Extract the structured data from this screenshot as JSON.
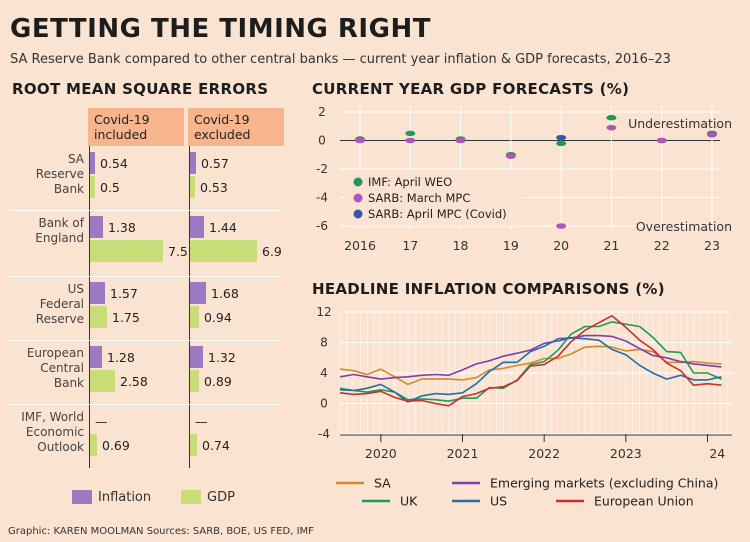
{
  "header": {
    "title": "GETTING THE TIMING RIGHT",
    "subtitle": "SA Reserve Bank compared to other central banks — current year inflation & GDP forecasts, 2016–23"
  },
  "credit": "Graphic: KAREN MOOLMAN  Sources: SARB, BOE, US FED, IMF",
  "colors": {
    "inflation": "#9b7ac2",
    "gdp": "#c8dd78",
    "background": "#fbe3d2",
    "header_band": "#f6b58c"
  },
  "chart_data": [
    {
      "type": "bar",
      "title": "ROOT MEAN SQUARE ERRORS",
      "column_headers": [
        "Covid-19 included",
        "Covid-19 excluded"
      ],
      "categories": [
        "SA Reserve Bank",
        "Bank of England",
        "US Federal Reserve",
        "European Central Bank",
        "IMF, World Economic Outlook"
      ],
      "category_lines": [
        [
          "SA",
          "Reserve",
          "Bank"
        ],
        [
          "Bank of",
          "England"
        ],
        [
          "US",
          "Federal",
          "Reserve"
        ],
        [
          "European",
          "Central",
          "Bank"
        ],
        [
          "IMF, World",
          "Economic",
          "Outlook"
        ]
      ],
      "series": [
        {
          "name": "Inflation",
          "color": "#9b7ac2",
          "included": [
            0.54,
            1.38,
            1.57,
            1.28,
            null
          ],
          "excluded": [
            0.57,
            1.44,
            1.68,
            1.32,
            null
          ],
          "included_labels": [
            "0.54",
            "1.38",
            "1.57",
            "1.28",
            "—"
          ],
          "excluded_labels": [
            "0.57",
            "1.44",
            "1.68",
            "1.32",
            "—"
          ]
        },
        {
          "name": "GDP",
          "color": "#c8dd78",
          "included": [
            0.5,
            7.5,
            1.75,
            2.58,
            0.69
          ],
          "excluded": [
            0.53,
            6.9,
            0.94,
            0.89,
            0.74
          ],
          "included_labels": [
            "0.5",
            "7.5",
            "1.75",
            "2.58",
            "0.69"
          ],
          "excluded_labels": [
            "0.53",
            "6.9",
            "0.94",
            "0.89",
            "0.74"
          ]
        }
      ],
      "legend": [
        "Inflation",
        "GDP"
      ]
    },
    {
      "type": "scatter",
      "title": "CURRENT YEAR GDP FORECASTS (%)",
      "x_ticks": [
        "2016",
        "17",
        "18",
        "19",
        "20",
        "21",
        "22",
        "23"
      ],
      "y_ticks": [
        "2",
        "0",
        "-2",
        "-4",
        "-6"
      ],
      "ylim": [
        -6.5,
        2.5
      ],
      "annotations": [
        "Underestimation",
        "Overestimation"
      ],
      "series": [
        {
          "name": "IMF: April WEO",
          "color": "#1e9a5a",
          "points": [
            [
              2016,
              0.1
            ],
            [
              2017,
              0.5
            ],
            [
              2018,
              0.1
            ],
            [
              2019,
              -1.0
            ],
            [
              2020,
              -0.2
            ],
            [
              2021,
              1.6
            ],
            [
              2022,
              0.0
            ],
            [
              2023,
              0.5
            ]
          ]
        },
        {
          "name": "SARB: March MPC",
          "color": "#b054b8",
          "points": [
            [
              2016,
              0.0
            ],
            [
              2017,
              0.0
            ],
            [
              2018,
              0.0
            ],
            [
              2019,
              -1.1
            ],
            [
              2020,
              -6.0
            ],
            [
              2021,
              0.9
            ],
            [
              2022,
              0.0
            ],
            [
              2023,
              0.4
            ]
          ]
        },
        {
          "name": "SARB: April MPC (Covid)",
          "color": "#3b55a8",
          "points": [
            [
              2020,
              0.2
            ]
          ]
        }
      ]
    },
    {
      "type": "line",
      "title": "HEADLINE INFLATION COMPARISONS (%)",
      "x_ticks": [
        "2020",
        "2021",
        "2022",
        "2023",
        "24"
      ],
      "y_ticks": [
        "12",
        "8",
        "4",
        "0",
        "-4"
      ],
      "ylim": [
        -4,
        12
      ],
      "x_range": [
        2019.5,
        2024.3
      ],
      "series": [
        {
          "name": "SA",
          "color": "#d4882e",
          "x": [
            2019.5,
            2019.67,
            2019.83,
            2020.0,
            2020.17,
            2020.33,
            2020.5,
            2020.67,
            2020.83,
            2021.0,
            2021.17,
            2021.33,
            2021.5,
            2021.67,
            2021.83,
            2022.0,
            2022.17,
            2022.33,
            2022.5,
            2022.67,
            2022.83,
            2023.0,
            2023.17,
            2023.33,
            2023.5,
            2023.67,
            2023.83,
            2024.0,
            2024.17
          ],
          "y": [
            4.5,
            4.3,
            3.8,
            4.5,
            3.5,
            2.5,
            3.2,
            3.2,
            3.2,
            3.1,
            3.4,
            4.4,
            4.6,
            5.0,
            5.3,
            5.9,
            5.9,
            6.5,
            7.4,
            7.5,
            7.4,
            6.9,
            7.1,
            6.8,
            5.4,
            5.4,
            5.5,
            5.3,
            5.2
          ]
        },
        {
          "name": "Emerging markets (excluding China)",
          "color": "#7a3fb0",
          "x": [
            2019.5,
            2019.67,
            2019.83,
            2020.0,
            2020.17,
            2020.33,
            2020.5,
            2020.67,
            2020.83,
            2021.0,
            2021.17,
            2021.33,
            2021.5,
            2021.67,
            2021.83,
            2022.0,
            2022.17,
            2022.33,
            2022.5,
            2022.67,
            2022.83,
            2023.0,
            2023.17,
            2023.33,
            2023.5,
            2023.67,
            2023.83,
            2024.0,
            2024.17
          ],
          "y": [
            3.5,
            3.8,
            3.5,
            3.2,
            3.4,
            3.5,
            3.7,
            3.8,
            3.7,
            4.4,
            5.2,
            5.6,
            6.2,
            6.6,
            7.0,
            7.9,
            8.2,
            8.6,
            8.9,
            8.9,
            8.8,
            8.2,
            7.2,
            6.3,
            6.0,
            5.5,
            5.2,
            5.0,
            4.8
          ]
        },
        {
          "name": "UK",
          "color": "#1e9a5a",
          "x": [
            2019.5,
            2019.67,
            2019.83,
            2020.0,
            2020.17,
            2020.33,
            2020.5,
            2020.67,
            2020.83,
            2021.0,
            2021.17,
            2021.33,
            2021.5,
            2021.67,
            2021.83,
            2022.0,
            2022.17,
            2022.33,
            2022.5,
            2022.67,
            2022.83,
            2023.0,
            2023.17,
            2023.33,
            2023.5,
            2023.67,
            2023.83,
            2024.0,
            2024.17
          ],
          "y": [
            2.0,
            1.7,
            1.5,
            1.8,
            1.5,
            0.5,
            0.6,
            0.5,
            0.3,
            0.7,
            0.7,
            2.1,
            2.0,
            3.1,
            5.1,
            5.5,
            7.0,
            9.1,
            10.1,
            10.1,
            10.7,
            10.4,
            10.1,
            8.7,
            6.8,
            6.7,
            4.0,
            4.0,
            3.2
          ]
        },
        {
          "name": "US",
          "color": "#1f6fa8",
          "x": [
            2019.5,
            2019.67,
            2019.83,
            2020.0,
            2020.17,
            2020.33,
            2020.5,
            2020.67,
            2020.83,
            2021.0,
            2021.17,
            2021.33,
            2021.5,
            2021.67,
            2021.83,
            2022.0,
            2022.17,
            2022.33,
            2022.5,
            2022.67,
            2022.83,
            2023.0,
            2023.17,
            2023.33,
            2023.5,
            2023.67,
            2023.83,
            2024.0,
            2024.17
          ],
          "y": [
            1.8,
            1.7,
            2.0,
            2.5,
            1.5,
            0.2,
            1.0,
            1.3,
            1.2,
            1.4,
            2.6,
            4.2,
            5.4,
            5.4,
            6.8,
            7.5,
            8.5,
            8.6,
            8.5,
            8.3,
            7.1,
            6.4,
            5.0,
            4.0,
            3.2,
            3.7,
            3.1,
            3.1,
            3.5
          ]
        },
        {
          "name": "European Union",
          "color": "#c8302c",
          "x": [
            2019.5,
            2019.67,
            2019.83,
            2020.0,
            2020.17,
            2020.33,
            2020.5,
            2020.67,
            2020.83,
            2021.0,
            2021.17,
            2021.33,
            2021.5,
            2021.67,
            2021.83,
            2022.0,
            2022.17,
            2022.33,
            2022.5,
            2022.67,
            2022.83,
            2023.0,
            2023.17,
            2023.33,
            2023.5,
            2023.67,
            2023.83,
            2024.0,
            2024.17
          ],
          "y": [
            1.4,
            1.2,
            1.3,
            1.6,
            0.8,
            0.3,
            0.4,
            0.0,
            -0.3,
            0.9,
            1.3,
            2.0,
            2.2,
            3.0,
            4.9,
            5.1,
            6.2,
            8.1,
            9.6,
            10.6,
            11.5,
            10.0,
            8.3,
            7.1,
            5.3,
            4.3,
            2.4,
            2.6,
            2.4
          ]
        }
      ]
    }
  ]
}
